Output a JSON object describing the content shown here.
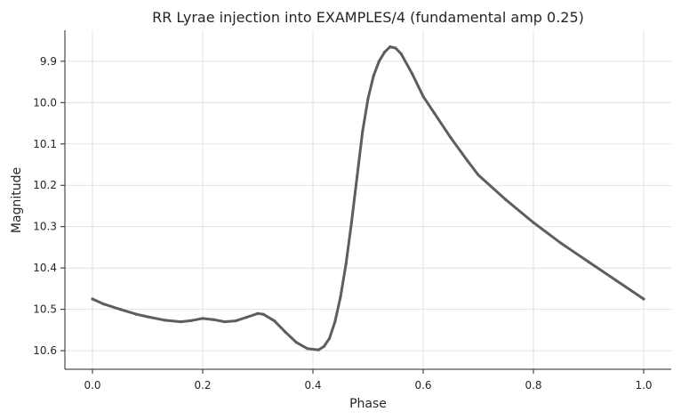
{
  "chart_data": {
    "type": "scatter",
    "title": "RR Lyrae injection into EXAMPLES/4 (fundamental amp 0.25)",
    "xlabel": "Phase",
    "ylabel": "Magnitude",
    "xlim": [
      -0.05,
      1.05
    ],
    "ylim": [
      10.645,
      9.825
    ],
    "y_inverted": true,
    "grid": true,
    "point_color": "#5e5e5e",
    "xticks": [
      0.0,
      0.2,
      0.4,
      0.6,
      0.8,
      1.0
    ],
    "xtick_labels": [
      "0.0",
      "0.2",
      "0.4",
      "0.6",
      "0.8",
      "1.0"
    ],
    "yticks": [
      9.9,
      10.0,
      10.1,
      10.2,
      10.3,
      10.4,
      10.5,
      10.6
    ],
    "ytick_labels": [
      "9.9",
      "10.0",
      "10.1",
      "10.2",
      "10.3",
      "10.4",
      "10.5",
      "10.6"
    ],
    "series": [
      {
        "x": [
          0.0,
          0.02,
          0.05,
          0.08,
          0.1,
          0.13,
          0.16,
          0.18,
          0.2,
          0.22,
          0.24,
          0.26,
          0.28,
          0.3,
          0.31,
          0.33,
          0.35,
          0.37,
          0.39,
          0.41,
          0.42,
          0.43,
          0.44,
          0.45,
          0.46,
          0.47,
          0.48,
          0.49,
          0.5,
          0.51,
          0.52,
          0.53,
          0.54,
          0.55,
          0.56,
          0.58,
          0.6,
          0.62,
          0.65,
          0.68,
          0.7,
          0.75,
          0.8,
          0.85,
          0.9,
          0.95,
          1.0
        ],
        "y": [
          10.475,
          10.487,
          10.5,
          10.512,
          10.518,
          10.526,
          10.53,
          10.527,
          10.522,
          10.525,
          10.53,
          10.528,
          10.519,
          10.51,
          10.512,
          10.528,
          10.555,
          10.58,
          10.595,
          10.598,
          10.59,
          10.57,
          10.53,
          10.47,
          10.39,
          10.29,
          10.18,
          10.07,
          9.99,
          9.935,
          9.9,
          9.878,
          9.865,
          9.868,
          9.882,
          9.93,
          9.985,
          10.025,
          10.085,
          10.14,
          10.175,
          10.235,
          10.29,
          10.34,
          10.385,
          10.43,
          10.475
        ]
      }
    ]
  }
}
